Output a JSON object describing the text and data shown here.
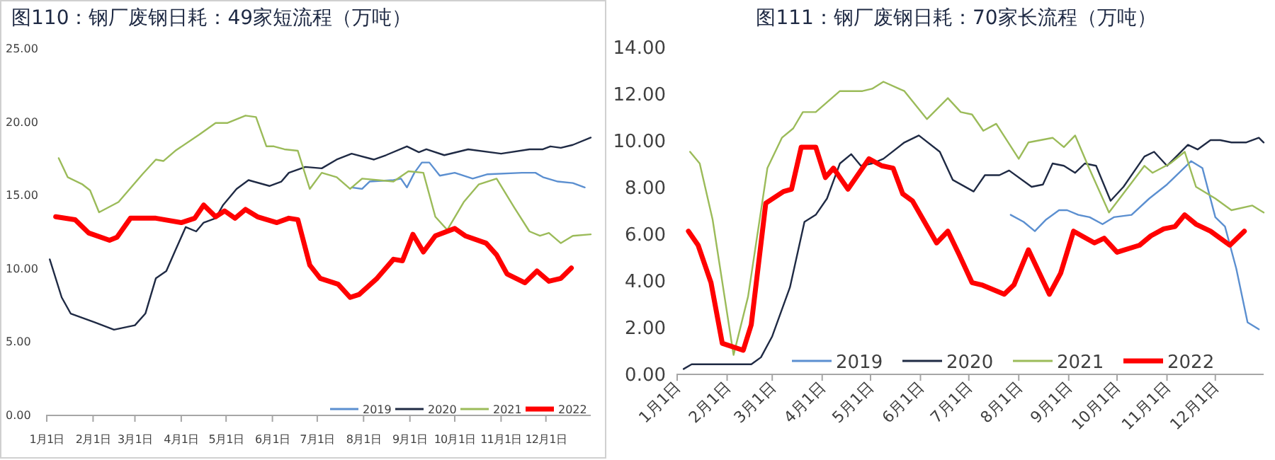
{
  "chart_data": [
    {
      "type": "line",
      "title": "图110：钢厂废钢日耗：49家短流程（万吨）",
      "xlim": [
        "--01-01",
        "--12-31"
      ],
      "ylim": [
        0,
        25
      ],
      "yticks": [
        {
          "value": 0,
          "label": "0.00"
        },
        {
          "value": 5,
          "label": "5.00"
        },
        {
          "value": 10,
          "label": "10.00"
        },
        {
          "value": 15,
          "label": "15.00"
        },
        {
          "value": 20,
          "label": "20.00"
        },
        {
          "value": 25,
          "label": "25.00"
        }
      ],
      "xticks": [
        {
          "value": "--01-01",
          "label": "1月1日"
        },
        {
          "value": "--02-01",
          "label": "2月1日"
        },
        {
          "value": "--03-01",
          "label": "3月1日"
        },
        {
          "value": "--04-01",
          "label": "4月1日"
        },
        {
          "value": "--05-01",
          "label": "5月1日"
        },
        {
          "value": "--06-01",
          "label": "6月1日"
        },
        {
          "value": "--07-01",
          "label": "7月1日"
        },
        {
          "value": "--08-01",
          "label": "8月1日"
        },
        {
          "value": "--09-01",
          "label": "9月1日"
        },
        {
          "value": "--10-01",
          "label": "10月1日"
        },
        {
          "value": "--11-01",
          "label": "11月1日"
        },
        {
          "value": "--12-01",
          "label": "12月1日"
        }
      ],
      "legend": "bottom right",
      "series": [
        {
          "name": "2019",
          "color": "#5b8fd0",
          "x": [
            "--07-24",
            "--07-31",
            "--08-05",
            "--08-21",
            "--08-26",
            "--08-30",
            "--09-04",
            "--09-09",
            "--09-14",
            "--09-21",
            "--10-01",
            "--10-13",
            "--10-23",
            "--11-15",
            "--11-24",
            "--11-29",
            "--12-09",
            "--12-19",
            "--12-27"
          ],
          "values": [
            15.5,
            15.4,
            15.9,
            16.0,
            16.1,
            15.5,
            16.5,
            17.2,
            17.2,
            16.3,
            16.5,
            16.1,
            16.4,
            16.5,
            16.5,
            16.2,
            15.9,
            15.8,
            15.5
          ]
        },
        {
          "name": "2020",
          "color": "#1f2a44",
          "x": [
            "--01-03",
            "--01-11",
            "--01-17",
            "--02-02",
            "--02-15",
            "--03-01",
            "--03-08",
            "--03-15",
            "--03-22",
            "--03-28",
            "--04-04",
            "--04-11",
            "--04-16",
            "--04-24",
            "--04-29",
            "--05-08",
            "--05-16",
            "--05-30",
            "--06-07",
            "--06-12",
            "--06-23",
            "--07-04",
            "--07-14",
            "--07-24",
            "--08-08",
            "--08-16",
            "--08-30",
            "--09-07",
            "--09-12",
            "--09-24",
            "--10-10",
            "--11-01",
            "--11-20",
            "--11-29",
            "--12-04",
            "--12-11",
            "--12-19",
            "--12-31"
          ],
          "values": [
            10.6,
            8.0,
            6.9,
            6.3,
            5.8,
            6.1,
            6.9,
            9.3,
            9.8,
            11.2,
            12.8,
            12.5,
            13.1,
            13.4,
            14.3,
            15.4,
            16.0,
            15.6,
            15.9,
            16.5,
            16.9,
            16.8,
            17.4,
            17.8,
            17.4,
            17.7,
            18.3,
            17.9,
            18.1,
            17.7,
            18.1,
            17.8,
            18.1,
            18.1,
            18.3,
            18.2,
            18.4,
            18.9
          ]
        },
        {
          "name": "2021",
          "color": "#9bbb59",
          "x": [
            "--01-09",
            "--01-15",
            "--01-25",
            "--01-30",
            "--02-05",
            "--02-18",
            "--03-06",
            "--03-15",
            "--03-20",
            "--03-28",
            "--04-13",
            "--04-24",
            "--05-02",
            "--05-14",
            "--05-21",
            "--05-28",
            "--06-02",
            "--06-09",
            "--06-18",
            "--06-26",
            "--07-04",
            "--07-14",
            "--07-23",
            "--07-31",
            "--08-21",
            "--08-31",
            "--09-10",
            "--09-18",
            "--09-26",
            "--10-07",
            "--10-17",
            "--10-29",
            "--11-10",
            "--11-20",
            "--11-27",
            "--12-03",
            "--12-11",
            "--12-19",
            "--12-31"
          ],
          "values": [
            17.5,
            16.2,
            15.7,
            15.3,
            13.8,
            14.5,
            16.4,
            17.4,
            17.3,
            18.0,
            19.1,
            19.9,
            19.9,
            20.4,
            20.3,
            18.3,
            18.3,
            18.1,
            18.0,
            15.4,
            16.5,
            16.2,
            15.4,
            16.1,
            15.9,
            16.6,
            16.5,
            13.5,
            12.6,
            14.5,
            15.7,
            16.1,
            14.1,
            12.5,
            12.2,
            12.4,
            11.7,
            12.2,
            12.3
          ]
        },
        {
          "name": "2022",
          "color": "#ff0000",
          "x": [
            "--01-07",
            "--01-20",
            "--01-29",
            "--02-12",
            "--02-17",
            "--02-26",
            "--03-15",
            "--04-01",
            "--04-10",
            "--04-16",
            "--04-24",
            "--04-30",
            "--05-07",
            "--05-14",
            "--05-22",
            "--06-04",
            "--06-12",
            "--06-18",
            "--06-26",
            "--07-03",
            "--07-15",
            "--07-23",
            "--07-29",
            "--08-10",
            "--08-21",
            "--08-27",
            "--09-03",
            "--09-10",
            "--09-18",
            "--10-01",
            "--10-08",
            "--10-22",
            "--10-29",
            "--11-05",
            "--11-17",
            "--11-25",
            "--12-03",
            "--12-11",
            "--12-18"
          ],
          "values": [
            13.5,
            13.3,
            12.4,
            11.9,
            12.1,
            13.4,
            13.4,
            13.1,
            13.4,
            14.3,
            13.5,
            13.9,
            13.4,
            14.0,
            13.5,
            13.1,
            13.4,
            13.3,
            10.2,
            9.3,
            8.9,
            8.0,
            8.2,
            9.3,
            10.6,
            10.5,
            12.3,
            11.1,
            12.2,
            12.7,
            12.2,
            11.7,
            10.9,
            9.6,
            9.0,
            9.8,
            9.1,
            9.3,
            10.0
          ]
        }
      ]
    },
    {
      "type": "line",
      "title": "图111：钢厂废钢日耗：70家长流程（万吨）",
      "xlim": [
        "--01-01",
        "--12-31"
      ],
      "ylim": [
        0,
        14
      ],
      "yticks": [
        {
          "value": 0,
          "label": "0.00"
        },
        {
          "value": 2,
          "label": "2.00"
        },
        {
          "value": 4,
          "label": "4.00"
        },
        {
          "value": 6,
          "label": "6.00"
        },
        {
          "value": 8,
          "label": "8.00"
        },
        {
          "value": 10,
          "label": "10.00"
        },
        {
          "value": 12,
          "label": "12.00"
        },
        {
          "value": 14,
          "label": "14.00"
        }
      ],
      "xticks": [
        {
          "value": "--01-01",
          "label": "1月1日"
        },
        {
          "value": "--02-01",
          "label": "2月1日"
        },
        {
          "value": "--03-01",
          "label": "3月1日"
        },
        {
          "value": "--04-01",
          "label": "4月1日"
        },
        {
          "value": "--05-01",
          "label": "5月1日"
        },
        {
          "value": "--06-01",
          "label": "6月1日"
        },
        {
          "value": "--07-01",
          "label": "7月1日"
        },
        {
          "value": "--08-01",
          "label": "8月1日"
        },
        {
          "value": "--09-01",
          "label": "9月1日"
        },
        {
          "value": "--10-01",
          "label": "10月1日"
        },
        {
          "value": "--11-01",
          "label": "11月1日"
        },
        {
          "value": "--12-01",
          "label": "12月1日"
        }
      ],
      "legend": "bottom",
      "series": [
        {
          "name": "2019",
          "color": "#5b8fd0",
          "x": [
            "--07-27",
            "--08-04",
            "--08-11",
            "--08-18",
            "--08-26",
            "--08-31",
            "--09-07",
            "--09-14",
            "--09-22",
            "--09-29",
            "--10-10",
            "--10-21",
            "--11-01",
            "--11-16",
            "--11-23",
            "--12-01",
            "--12-07",
            "--12-14",
            "--12-21",
            "--12-28"
          ],
          "values": [
            6.8,
            6.5,
            6.1,
            6.6,
            7.0,
            7.0,
            6.8,
            6.7,
            6.4,
            6.7,
            6.8,
            7.5,
            8.1,
            9.1,
            8.8,
            6.7,
            6.3,
            4.5,
            2.2,
            1.9
          ]
        },
        {
          "name": "2020",
          "color": "#1f2a44",
          "x": [
            "--01-05",
            "--01-10",
            "--02-16",
            "--02-22",
            "--03-01",
            "--03-12",
            "--03-21",
            "--03-28",
            "--04-04",
            "--04-12",
            "--04-19",
            "--04-25",
            "--05-02",
            "--05-09",
            "--05-22",
            "--05-31",
            "--06-13",
            "--06-21",
            "--07-04",
            "--07-11",
            "--07-20",
            "--07-26",
            "--08-09",
            "--08-16",
            "--08-22",
            "--08-29",
            "--09-05",
            "--09-11",
            "--09-18",
            "--09-27",
            "--10-05",
            "--10-18",
            "--10-24",
            "--11-01",
            "--11-14",
            "--11-20",
            "--11-28",
            "--12-04",
            "--12-11",
            "--12-20",
            "--12-28",
            "--12-31"
          ],
          "values": [
            0.2,
            0.4,
            0.4,
            0.7,
            1.6,
            3.7,
            6.5,
            6.8,
            7.5,
            9.0,
            9.4,
            8.9,
            9.0,
            9.2,
            9.9,
            10.2,
            9.5,
            8.3,
            7.8,
            8.5,
            8.5,
            8.7,
            8.0,
            8.1,
            9.0,
            8.9,
            8.6,
            9.0,
            8.9,
            7.4,
            8.0,
            9.3,
            9.5,
            8.9,
            9.8,
            9.6,
            10.0,
            10.0,
            9.9,
            9.9,
            10.1,
            9.9
          ]
        },
        {
          "name": "2021",
          "color": "#9bbb59",
          "x": [
            "--01-09",
            "--01-15",
            "--01-23",
            "--02-05",
            "--02-14",
            "--02-26",
            "--03-07",
            "--03-14",
            "--03-20",
            "--03-28",
            "--04-12",
            "--04-26",
            "--05-02",
            "--05-09",
            "--05-22",
            "--06-05",
            "--06-18",
            "--06-26",
            "--07-03",
            "--07-10",
            "--07-18",
            "--08-01",
            "--08-07",
            "--08-22",
            "--08-29",
            "--09-05",
            "--09-13",
            "--09-26",
            "--10-18",
            "--10-23",
            "--11-03",
            "--11-12",
            "--11-19",
            "--12-01",
            "--12-11",
            "--12-24",
            "--12-31"
          ],
          "values": [
            9.5,
            9.0,
            6.6,
            0.8,
            3.3,
            8.8,
            10.1,
            10.5,
            11.2,
            11.2,
            12.1,
            12.1,
            12.2,
            12.5,
            12.1,
            10.9,
            11.8,
            11.2,
            11.1,
            10.4,
            10.7,
            9.2,
            9.9,
            10.1,
            9.7,
            10.2,
            8.9,
            6.9,
            8.9,
            8.6,
            9.0,
            9.5,
            8.0,
            7.5,
            7.0,
            7.2,
            6.9
          ]
        },
        {
          "name": "2022",
          "color": "#ff0000",
          "x": [
            "--01-08",
            "--01-14",
            "--01-22",
            "--01-29",
            "--02-11",
            "--02-16",
            "--02-25",
            "--03-08",
            "--03-13",
            "--03-19",
            "--03-28",
            "--04-03",
            "--04-08",
            "--04-17",
            "--04-30",
            "--05-08",
            "--05-15",
            "--05-21",
            "--05-27",
            "--06-11",
            "--06-18",
            "--06-25",
            "--07-03",
            "--07-09",
            "--07-23",
            "--07-29",
            "--08-07",
            "--08-20",
            "--08-27",
            "--09-04",
            "--09-17",
            "--09-23",
            "--10-01",
            "--10-15",
            "--10-22",
            "--10-30",
            "--11-06",
            "--11-12",
            "--11-19",
            "--11-28",
            "--12-10",
            "--12-19"
          ],
          "values": [
            6.1,
            5.5,
            3.9,
            1.3,
            1.0,
            2.1,
            7.3,
            7.8,
            7.9,
            9.7,
            9.7,
            8.4,
            8.8,
            7.9,
            9.2,
            8.9,
            8.8,
            7.7,
            7.4,
            5.6,
            6.1,
            5.1,
            3.9,
            3.8,
            3.4,
            3.8,
            5.3,
            3.4,
            4.3,
            6.1,
            5.6,
            5.8,
            5.2,
            5.5,
            5.9,
            6.2,
            6.3,
            6.8,
            6.4,
            6.1,
            5.5,
            6.1
          ]
        }
      ]
    }
  ]
}
